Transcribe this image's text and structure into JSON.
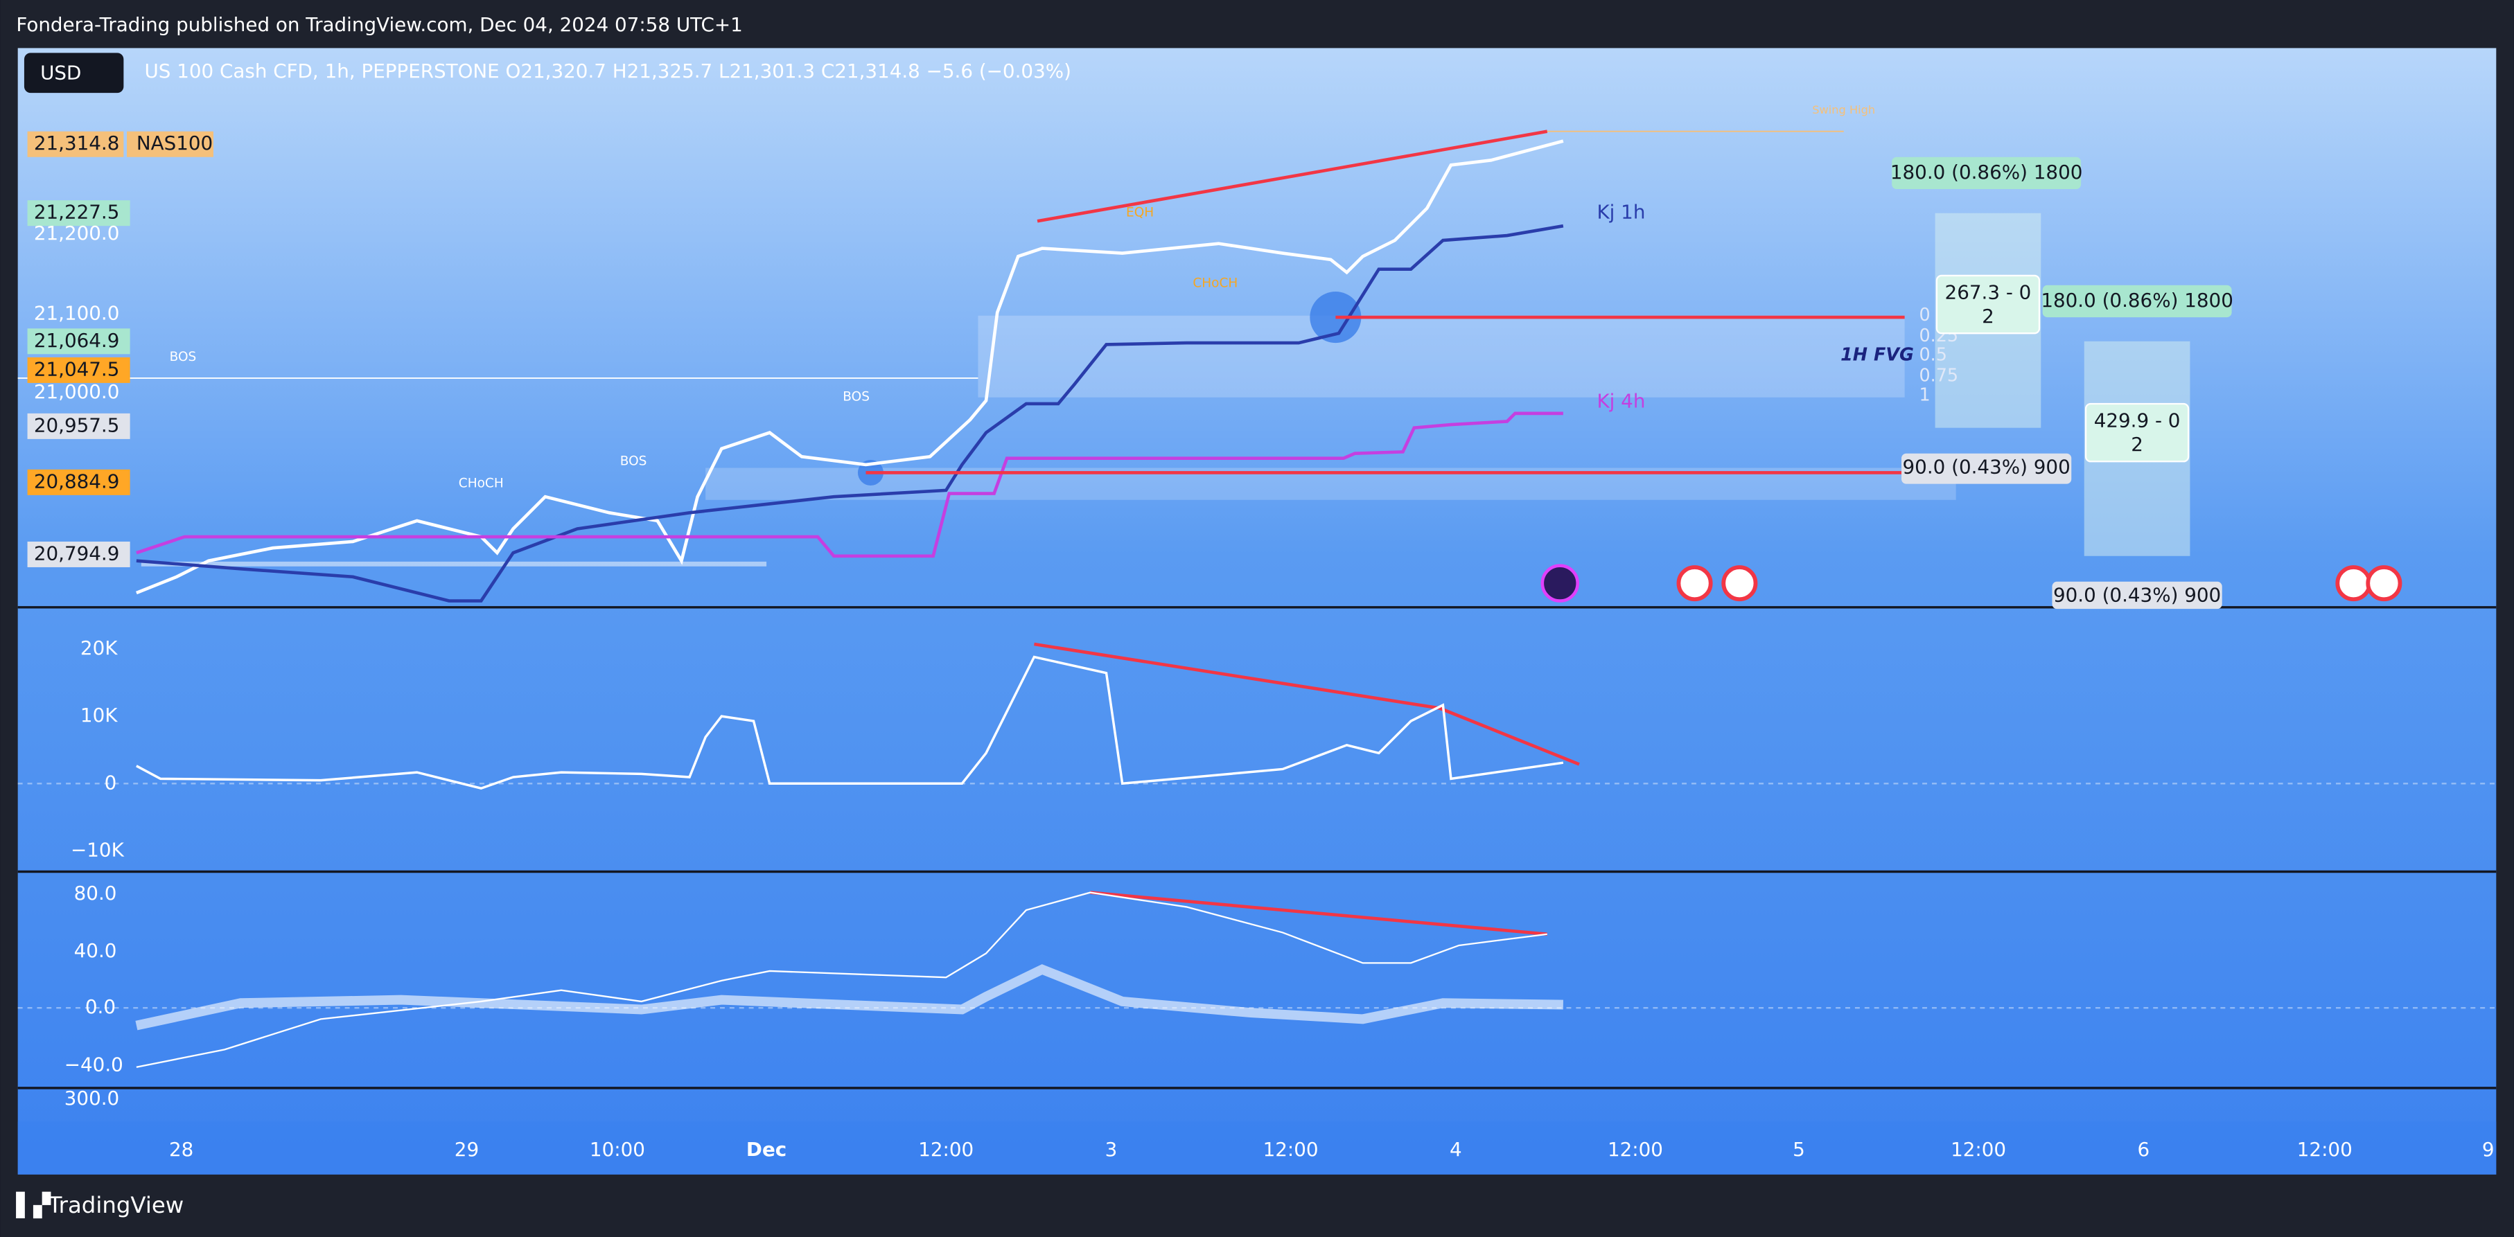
{
  "header": {
    "publisher": "Fondera-Trading published on TradingView.com, Dec 04, 2024 07:58 UTC+1"
  },
  "chart": {
    "currency_button": "USD",
    "legend": "US 100 Cash CFD, 1h, PEPPERSTONE  O21,320.7  H21,325.7  L21,301.3  C21,314.8  −5.6 (−0.03%)",
    "symbol_tag": "NAS100",
    "price_labels": [
      "21,314.8",
      "21,227.5",
      "21,200.0",
      "21,100.0",
      "21,064.9",
      "21,047.5",
      "21,000.0",
      "20,957.5",
      "20,884.9",
      "20,794.9"
    ],
    "volume_axis": [
      "20K",
      "10K",
      "0",
      "−10K"
    ],
    "oscillator_axis": [
      "80.0",
      "40.0",
      "0.0",
      "−40.0"
    ],
    "extra_axis": [
      "300.0"
    ],
    "time_axis": [
      "28",
      "29",
      "10:00",
      "Dec",
      "12:00",
      "3",
      "12:00",
      "4",
      "12:00",
      "5",
      "12:00",
      "6",
      "12:00",
      "9"
    ],
    "annotations": {
      "bos": [
        "BOS",
        "BOS",
        "BOS"
      ],
      "choch": [
        "CHoCH",
        "CHoCH"
      ],
      "eqh": "EQH",
      "swing_high": "Swing High",
      "kj_1h": "Kj 1h",
      "kj_4h": "Kj 4h",
      "fvg": "1H FVG",
      "fib": [
        "0",
        "0.25",
        "0.5",
        "0.75",
        "1"
      ]
    },
    "position_boxes": [
      "180.0 (0.86%) 1800",
      "267.3 - 0",
      "2",
      "180.0 (0.86%) 1800",
      "429.9 - 0",
      "2",
      "90.0 (0.43%) 900",
      "90.0 (0.43%) 900"
    ]
  },
  "footer": {
    "brand": "TradingView"
  }
}
